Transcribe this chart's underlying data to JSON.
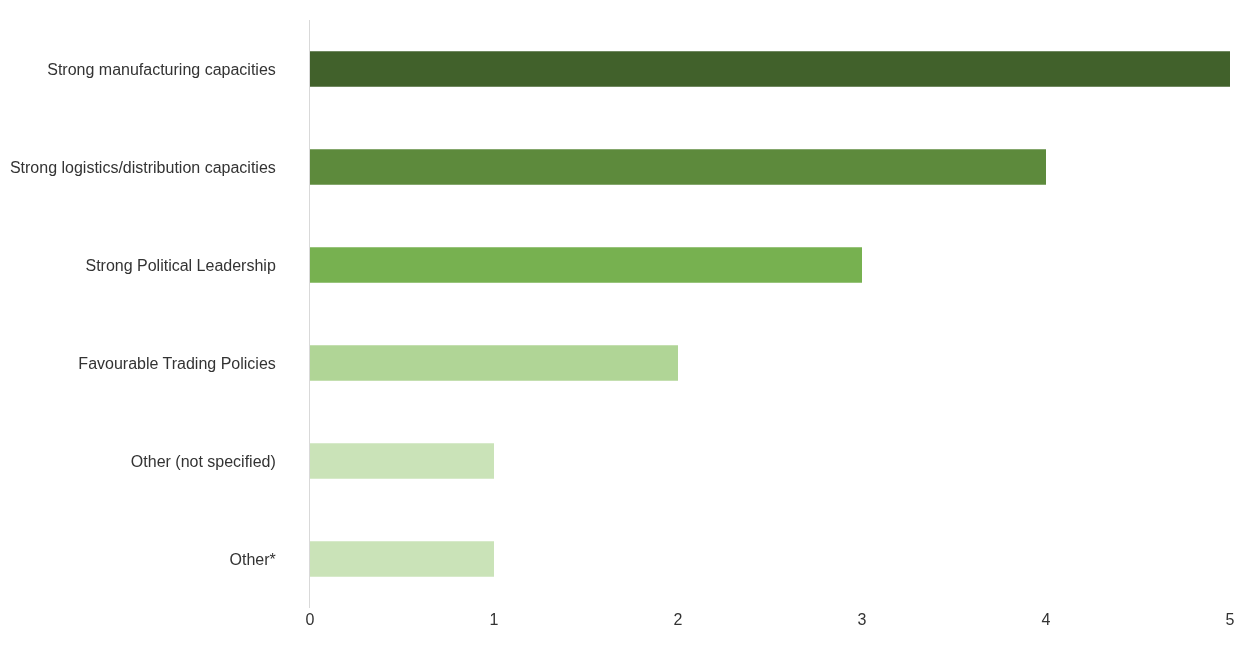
{
  "chart_data": {
    "type": "bar",
    "orientation": "horizontal",
    "categories": [
      "Strong manufacturing capacities",
      "Strong logistics/distribution capacities",
      "Strong Political Leadership",
      "Favourable Trading Policies",
      "Other (not specified)",
      "Other*"
    ],
    "values": [
      5,
      4,
      3,
      2,
      1,
      1
    ],
    "colors": [
      "#41612b",
      "#5d8a3c",
      "#77b150",
      "#b0d596",
      "#cae3b8",
      "#cae3b8"
    ],
    "xlim": [
      0,
      5
    ],
    "xticks": [
      0,
      1,
      2,
      3,
      4,
      5
    ],
    "legend": false
  }
}
